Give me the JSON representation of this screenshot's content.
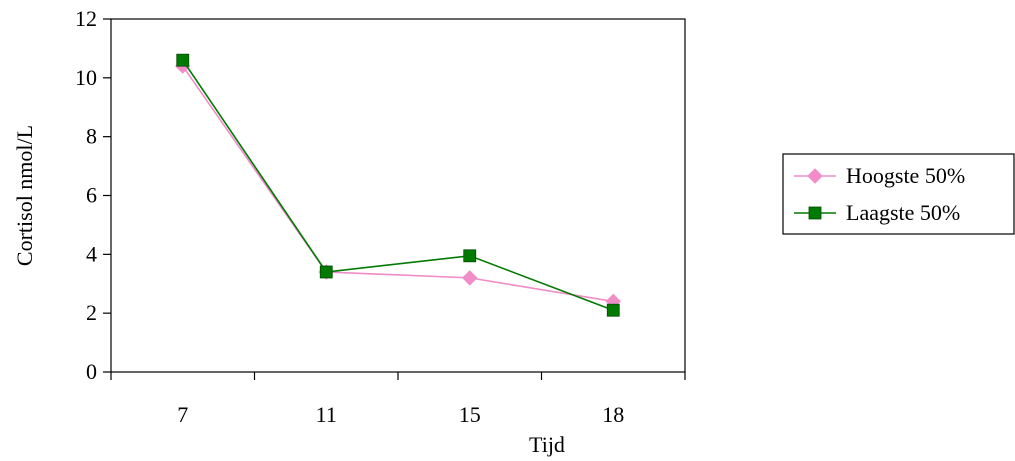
{
  "chart_data": {
    "type": "line",
    "categories": [
      "7",
      "11",
      "15",
      "18"
    ],
    "series": [
      {
        "name": "Hoogste 50%",
        "values": [
          10.4,
          3.4,
          3.2,
          2.4
        ],
        "color": "#f08cc8",
        "marker": "diamond"
      },
      {
        "name": "Laagste 50%",
        "values": [
          10.6,
          3.4,
          3.95,
          2.1
        ],
        "color": "#007a00",
        "marker": "square"
      }
    ],
    "title": "",
    "xlabel": "Tijd",
    "ylabel": "Cortisol nmol/L",
    "ylim": [
      0,
      12
    ],
    "yticks": [
      "0",
      "2",
      "4",
      "6",
      "8",
      "10",
      "12"
    ],
    "grid": false,
    "legend_position": "right"
  }
}
